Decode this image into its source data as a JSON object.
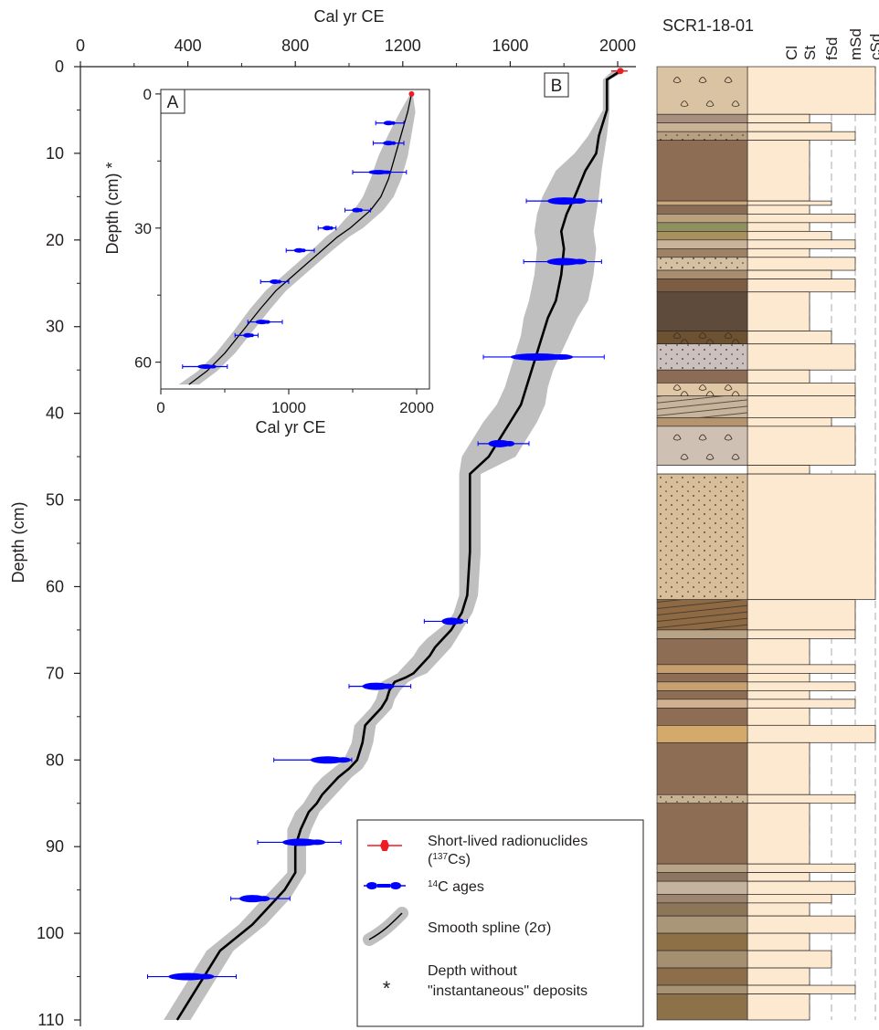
{
  "chart_data": [
    {
      "type": "line",
      "panel_label": "B",
      "title": "",
      "xlabel": "Cal yr CE",
      "ylabel": "Depth (cm)",
      "xlim": [
        0,
        2050
      ],
      "ylim": [
        110,
        0
      ],
      "y_inverted": true,
      "x_ticks": [
        0,
        400,
        800,
        1200,
        1600,
        2000
      ],
      "y_ticks": [
        0,
        10,
        20,
        30,
        40,
        50,
        60,
        70,
        80,
        90,
        100,
        110
      ],
      "series": [
        {
          "name": "Smooth spline (2σ)",
          "style": "step",
          "x": [
            2010,
            1960,
            1960,
            1930,
            1920,
            1880,
            1840,
            1810,
            1790,
            1800,
            1790,
            1770,
            1740,
            1720,
            1700,
            1680,
            1660,
            1640,
            1600,
            1560,
            1520,
            1450,
            1450,
            1440,
            1420,
            1400,
            1380,
            1350,
            1320,
            1300,
            1270,
            1240,
            1210,
            1170,
            1150,
            1140,
            1120,
            1090,
            1060,
            1050,
            1030,
            1000,
            960,
            930,
            900,
            880,
            850,
            820,
            800,
            800,
            780,
            760,
            730,
            700,
            670,
            640,
            600,
            560,
            520,
            480,
            440,
            400,
            360
          ],
          "y": [
            0.5,
            1.5,
            5,
            8,
            10,
            12,
            15,
            17,
            19,
            21,
            24,
            27,
            29,
            31,
            33,
            35,
            37,
            39,
            41,
            43,
            45,
            47,
            56,
            61,
            63,
            64,
            65,
            66,
            67,
            68,
            69,
            70,
            70.5,
            71,
            72,
            73,
            74,
            75,
            76,
            78,
            80,
            81,
            82,
            83,
            84,
            85,
            86,
            88,
            90,
            93,
            94,
            95,
            96,
            97,
            98,
            99,
            100,
            101,
            102,
            104,
            106,
            108,
            110
          ],
          "x_min": [
            1980,
            1945,
            1945,
            1890,
            1840,
            1770,
            1720,
            1700,
            1690,
            1700,
            1690,
            1670,
            1650,
            1640,
            1620,
            1600,
            1580,
            1550,
            1500,
            1460,
            1420,
            1410,
            1410,
            1410,
            1390,
            1370,
            1330,
            1290,
            1260,
            1240,
            1210,
            1180,
            1150,
            1120,
            1110,
            1100,
            1080,
            1050,
            1020,
            1010,
            980,
            940,
            900,
            870,
            850,
            830,
            800,
            770,
            770,
            770,
            740,
            710,
            680,
            650,
            620,
            590,
            550,
            510,
            470,
            430,
            390,
            350,
            310
          ],
          "x_max": [
            2030,
            1970,
            1970,
            1960,
            1950,
            1940,
            1930,
            1920,
            1910,
            1920,
            1910,
            1890,
            1850,
            1820,
            1790,
            1760,
            1740,
            1730,
            1700,
            1660,
            1620,
            1490,
            1490,
            1480,
            1460,
            1440,
            1420,
            1400,
            1380,
            1350,
            1320,
            1290,
            1250,
            1220,
            1190,
            1170,
            1160,
            1130,
            1100,
            1090,
            1070,
            1050,
            1010,
            980,
            950,
            920,
            890,
            860,
            840,
            840,
            820,
            800,
            780,
            750,
            720,
            690,
            650,
            610,
            570,
            530,
            490,
            450,
            410
          ]
        },
        {
          "name": "14C ages",
          "style": "errorbar",
          "points": [
            {
              "x": 1800,
              "y": 15.5,
              "x_lo": 1660,
              "x_hi": 1940
            },
            {
              "x": 1800,
              "y": 22.5,
              "x_lo": 1650,
              "x_hi": 1940
            },
            {
              "x": 1700,
              "y": 33.5,
              "x_lo": 1500,
              "x_hi": 1950
            },
            {
              "x": 1560,
              "y": 43.5,
              "x_lo": 1480,
              "x_hi": 1670
            },
            {
              "x": 1380,
              "y": 64,
              "x_lo": 1280,
              "x_hi": 1440
            },
            {
              "x": 1100,
              "y": 71.5,
              "x_lo": 1000,
              "x_hi": 1230
            },
            {
              "x": 920,
              "y": 80,
              "x_lo": 720,
              "x_hi": 1010
            },
            {
              "x": 820,
              "y": 89.5,
              "x_lo": 660,
              "x_hi": 970
            },
            {
              "x": 640,
              "y": 96,
              "x_lo": 560,
              "x_hi": 780
            },
            {
              "x": 400,
              "y": 105,
              "x_lo": 250,
              "x_hi": 580
            }
          ]
        },
        {
          "name": "Short-lived radionuclides (137Cs)",
          "style": "marker",
          "points": [
            {
              "x": 2010,
              "y": 0.5
            }
          ]
        }
      ],
      "legend": {
        "placement": "bottom-right",
        "entries": [
          {
            "label": "Short-lived radionuclides",
            "label2_prefix": "(",
            "label2_sup": "137",
            "label2_suffix": "Cs)",
            "color": "#ee1c24"
          },
          {
            "label_sup": "14",
            "label": "C ages",
            "color": "#0000ff"
          },
          {
            "label": "Smooth spline (2σ)",
            "color": "#bbbbbb"
          },
          {
            "label_symbol": "*",
            "label": "Depth without",
            "label2": "\"instantaneous\" deposits"
          }
        ]
      }
    },
    {
      "type": "line",
      "panel_label": "A",
      "title": "",
      "xlabel": "Cal yr CE",
      "ylabel": "Depth (cm) *",
      "xlim": [
        0,
        2100
      ],
      "ylim": [
        66,
        -1
      ],
      "y_inverted": true,
      "x_ticks": [
        0,
        1000,
        2000
      ],
      "y_ticks": [
        0,
        30,
        60
      ],
      "series": [
        {
          "name": "Smooth spline (2σ)",
          "style": "smooth",
          "x": [
            1960,
            1930,
            1880,
            1830,
            1780,
            1720,
            1640,
            1560,
            1480,
            1380,
            1260,
            1140,
            1020,
            900,
            780,
            640,
            500,
            360,
            220
          ],
          "y": [
            0,
            4,
            9,
            14,
            19,
            23,
            26,
            28,
            30,
            32,
            35,
            38,
            41,
            44,
            48,
            53,
            58,
            62,
            65
          ],
          "x_min": [
            1950,
            1870,
            1780,
            1700,
            1640,
            1580,
            1510,
            1440,
            1380,
            1290,
            1180,
            1060,
            940,
            820,
            700,
            570,
            430,
            290,
            140
          ],
          "x_max": [
            1970,
            1990,
            1960,
            1930,
            1880,
            1820,
            1740,
            1660,
            1580,
            1470,
            1340,
            1220,
            1100,
            980,
            860,
            720,
            580,
            440,
            300
          ]
        },
        {
          "name": "14C ages",
          "style": "errorbar",
          "points": [
            {
              "x": 1780,
              "y": 6.5,
              "x_lo": 1680,
              "x_hi": 1900
            },
            {
              "x": 1780,
              "y": 11,
              "x_lo": 1660,
              "x_hi": 1900
            },
            {
              "x": 1700,
              "y": 17.5,
              "x_lo": 1500,
              "x_hi": 1920
            },
            {
              "x": 1530,
              "y": 26,
              "x_lo": 1440,
              "x_hi": 1640
            },
            {
              "x": 1300,
              "y": 30,
              "x_lo": 1230,
              "x_hi": 1370
            },
            {
              "x": 1080,
              "y": 35,
              "x_lo": 980,
              "x_hi": 1200
            },
            {
              "x": 890,
              "y": 42,
              "x_lo": 780,
              "x_hi": 1000
            },
            {
              "x": 790,
              "y": 51,
              "x_lo": 680,
              "x_hi": 950
            },
            {
              "x": 680,
              "y": 54,
              "x_lo": 580,
              "x_hi": 760
            },
            {
              "x": 350,
              "y": 61,
              "x_lo": 170,
              "x_hi": 520
            }
          ]
        },
        {
          "name": "Short-lived radionuclides (137Cs)",
          "style": "marker",
          "points": [
            {
              "x": 1960,
              "y": 0
            }
          ]
        }
      ]
    }
  ],
  "core_log": {
    "title": "SCR1-18-01",
    "grain_size_columns": [
      "Cl",
      "St",
      "fSd",
      "mSd",
      "cSd"
    ],
    "units": [
      {
        "top": 0,
        "bottom": 5.5,
        "fill": "#d9c3a2",
        "pattern": "shells",
        "grain": "cSd"
      },
      {
        "top": 5.5,
        "bottom": 6.5,
        "fill": "#a89080",
        "grain": "St"
      },
      {
        "top": 6.5,
        "bottom": 7.5,
        "fill": "#c9b394",
        "grain": "fSd"
      },
      {
        "top": 7.5,
        "bottom": 8.5,
        "fill": "#b89f82",
        "pattern": "dots",
        "grain": "mSd"
      },
      {
        "top": 8.5,
        "bottom": 15.5,
        "fill": "#8d6e55",
        "grain": "St"
      },
      {
        "top": 15.5,
        "bottom": 16,
        "fill": "#c9a87e",
        "grain": "fSd"
      },
      {
        "top": 16,
        "bottom": 17,
        "fill": "#8a6d55",
        "grain": "St"
      },
      {
        "top": 17,
        "bottom": 18,
        "fill": "#b9a17e",
        "grain": "mSd"
      },
      {
        "top": 18,
        "bottom": 19,
        "fill": "#8e9060",
        "grain": "St"
      },
      {
        "top": 19,
        "bottom": 20,
        "fill": "#a8905f",
        "grain": "fSd"
      },
      {
        "top": 20,
        "bottom": 21,
        "fill": "#c8b49a",
        "grain": "mSd"
      },
      {
        "top": 21,
        "bottom": 22,
        "fill": "#9d8266",
        "grain": "St"
      },
      {
        "top": 22,
        "bottom": 23.5,
        "fill": "#d4c0a2",
        "pattern": "dots",
        "grain": "mSd"
      },
      {
        "top": 23.5,
        "bottom": 24.5,
        "fill": "#a88e6e",
        "grain": "fSd"
      },
      {
        "top": 24.5,
        "bottom": 26,
        "fill": "#7b5d42",
        "grain": "mSd"
      },
      {
        "top": 26,
        "bottom": 30.5,
        "fill": "#5f4b3c",
        "grain": "St"
      },
      {
        "top": 30.5,
        "bottom": 32,
        "fill": "#6d5232",
        "pattern": "shells",
        "grain": "fSd"
      },
      {
        "top": 32,
        "bottom": 35,
        "fill": "#cbc0bd",
        "pattern": "dots",
        "grain": "mSd"
      },
      {
        "top": 35,
        "bottom": 36.5,
        "fill": "#8c6c55",
        "grain": "St"
      },
      {
        "top": 36.5,
        "bottom": 38,
        "fill": "#e0c7a6",
        "pattern": "shells",
        "grain": "mSd"
      },
      {
        "top": 38,
        "bottom": 40.5,
        "fill": "#c7b49c",
        "pattern": "laminae",
        "grain": "mSd"
      },
      {
        "top": 40.5,
        "bottom": 41.5,
        "fill": "#b4956e",
        "grain": "fSd"
      },
      {
        "top": 41.5,
        "bottom": 46,
        "fill": "#cfc0b4",
        "pattern": "shells",
        "grain": "mSd"
      },
      {
        "top": 46,
        "bottom": 47,
        "fill": "#ffffff",
        "grain": "St"
      },
      {
        "top": 47,
        "bottom": 61.5,
        "fill": "#d8bf9a",
        "pattern": "dots",
        "grain": "cSd"
      },
      {
        "top": 61.5,
        "bottom": 65,
        "fill": "#8d6a44",
        "pattern": "laminae",
        "grain": "mSd"
      },
      {
        "top": 65,
        "bottom": 66,
        "fill": "#b9a386",
        "grain": "mSd"
      },
      {
        "top": 66,
        "bottom": 69,
        "fill": "#8d6e55",
        "grain": "St"
      },
      {
        "top": 69,
        "bottom": 70,
        "fill": "#c79f6e",
        "grain": "mSd"
      },
      {
        "top": 70,
        "bottom": 71,
        "fill": "#8d6e55",
        "grain": "St"
      },
      {
        "top": 71,
        "bottom": 72,
        "fill": "#c6a06e",
        "grain": "mSd"
      },
      {
        "top": 72,
        "bottom": 73,
        "fill": "#8d6e55",
        "grain": "St"
      },
      {
        "top": 73,
        "bottom": 74,
        "fill": "#d0b08e",
        "grain": "mSd"
      },
      {
        "top": 74,
        "bottom": 76,
        "fill": "#8d6e55",
        "grain": "St"
      },
      {
        "top": 76,
        "bottom": 78,
        "fill": "#d4a96c",
        "grain": "cSd"
      },
      {
        "top": 78,
        "bottom": 84,
        "fill": "#8d6e55",
        "grain": "St"
      },
      {
        "top": 84,
        "bottom": 85,
        "fill": "#c9b291",
        "pattern": "dots",
        "grain": "mSd"
      },
      {
        "top": 85,
        "bottom": 92,
        "fill": "#8d6e55",
        "grain": "St"
      },
      {
        "top": 92,
        "bottom": 93,
        "fill": "#b9a386",
        "grain": "mSd"
      },
      {
        "top": 93,
        "bottom": 94,
        "fill": "#8d7660",
        "grain": "St"
      },
      {
        "top": 94,
        "bottom": 95.5,
        "fill": "#c5b49d",
        "grain": "mSd"
      },
      {
        "top": 95.5,
        "bottom": 96.5,
        "fill": "#9b8570",
        "grain": "fSd"
      },
      {
        "top": 96.5,
        "bottom": 98,
        "fill": "#8d7658",
        "grain": "St"
      },
      {
        "top": 98,
        "bottom": 100,
        "fill": "#a99577",
        "grain": "mSd"
      },
      {
        "top": 100,
        "bottom": 102,
        "fill": "#8d7046",
        "grain": "St"
      },
      {
        "top": 102,
        "bottom": 104,
        "fill": "#a48f70",
        "grain": "fSd"
      },
      {
        "top": 104,
        "bottom": 106,
        "fill": "#8c6f4a",
        "grain": "St"
      },
      {
        "top": 106,
        "bottom": 107,
        "fill": "#a89274",
        "grain": "mSd"
      },
      {
        "top": 107,
        "bottom": 110,
        "fill": "#8c7149",
        "grain": "St"
      }
    ]
  },
  "colors": {
    "axis": "#231f20",
    "spline_band": "#bfbfbf",
    "spline_line": "#000000",
    "c14": "#0000ff",
    "cs137": "#ee1c24",
    "grain_fill": "#fde9cf",
    "guide": "#a7a9ac"
  }
}
